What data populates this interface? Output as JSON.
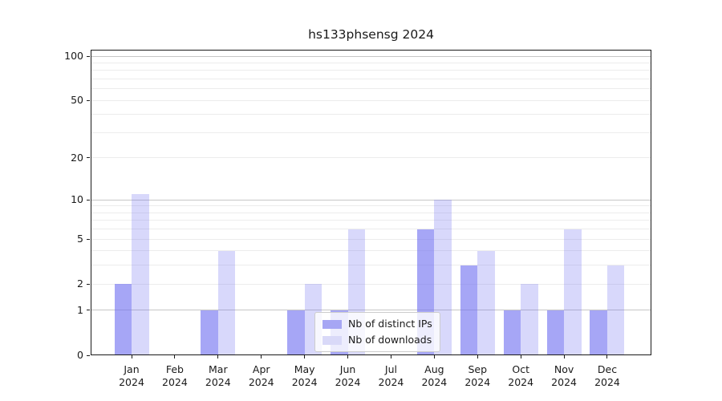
{
  "chart_data": {
    "type": "bar",
    "title": "hs133phsensg 2024",
    "year_label": "2024",
    "categories": [
      "Jan",
      "Feb",
      "Mar",
      "Apr",
      "May",
      "Jun",
      "Jul",
      "Aug",
      "Sep",
      "Oct",
      "Nov",
      "Dec"
    ],
    "series": [
      {
        "name": "Nb of distinct IPs",
        "color": "rgba(112,112,240,0.62)",
        "legend_color": "#a6a6f4",
        "values": [
          2,
          0,
          1,
          0,
          1,
          1,
          0,
          6,
          3,
          1,
          1,
          1
        ]
      },
      {
        "name": "Nb of downloads",
        "color": "rgba(112,112,240,0.27)",
        "legend_color": "#d9d9f8",
        "values": [
          11,
          0,
          4,
          0,
          2,
          6,
          0,
          10,
          4,
          2,
          6,
          3
        ]
      }
    ],
    "xlabel": "",
    "ylabel": "",
    "yscale": "log10(1+y)",
    "ylim": [
      0,
      110
    ],
    "yticks": [
      0,
      1,
      2,
      5,
      10,
      20,
      50,
      100
    ],
    "major_gridlines": [
      1,
      10,
      100
    ],
    "minor_gridlines": [
      2,
      3,
      4,
      5,
      6,
      7,
      8,
      9,
      20,
      30,
      40,
      50,
      60,
      70,
      80,
      90
    ],
    "grid": "horizontal",
    "legend_position": "lower center"
  },
  "colors": {
    "major_grid": "#c6c6c6",
    "minor_grid": "#ececec",
    "spine": "#1a1a1a",
    "text": "#1a1a1a"
  }
}
